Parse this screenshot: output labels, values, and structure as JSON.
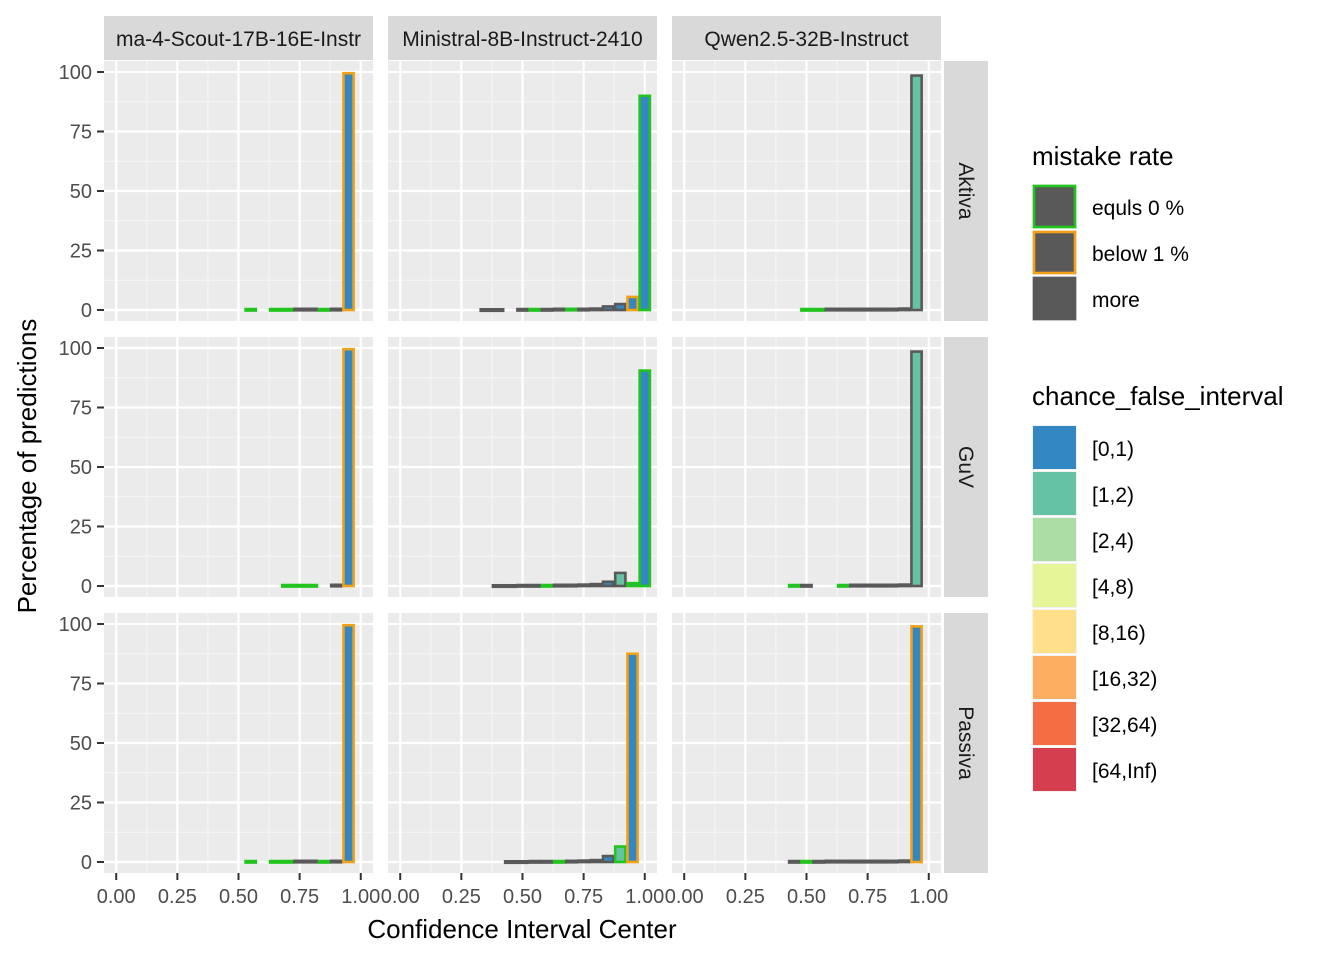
{
  "chart_data": {
    "type": "bar",
    "xlabel": "Confidence Interval Center",
    "ylabel": "Percentage of predictions",
    "xlim": [
      0,
      1
    ],
    "ylim": [
      0,
      100
    ],
    "x_ticks": [
      "0.00",
      "0.25",
      "0.50",
      "0.75",
      "1.00"
    ],
    "y_ticks": [
      "0",
      "25",
      "50",
      "75",
      "100"
    ],
    "bin_width": 0.05,
    "grid": true,
    "columns": [
      "ma-4-Scout-17B-16E-Instr",
      "Ministral-8B-Instruct-2410",
      "Qwen2.5-32B-Instruct"
    ],
    "rows": [
      "Aktiva",
      "GuV",
      "Passiva"
    ],
    "legend_placement": "right",
    "legend_mistake": {
      "title": "mistake rate",
      "items": [
        {
          "label": "equls 0 %",
          "color": "#22C41E"
        },
        {
          "label": "below 1 %",
          "color": "#F4A11A"
        },
        {
          "label": "more",
          "color": "#595959"
        }
      ]
    },
    "legend_fill": {
      "title": "chance_false_interval",
      "items": [
        {
          "label": "[0,1)",
          "color": "#3387C2"
        },
        {
          "label": "[1,2)",
          "color": "#66C2A5"
        },
        {
          "label": "[2,4)",
          "color": "#ABDDA4"
        },
        {
          "label": "[4,8)",
          "color": "#E6F598"
        },
        {
          "label": "[8,16)",
          "color": "#FEE08B"
        },
        {
          "label": "[16,32)",
          "color": "#FDAE61"
        },
        {
          "label": "[32,64)",
          "color": "#F46D43"
        },
        {
          "label": "[64,Inf)",
          "color": "#D53E4F"
        }
      ]
    },
    "panels": [
      {
        "column": 0,
        "row": 0,
        "bars": [
          {
            "x": 0.55,
            "y": 0.4,
            "outline": "#22C41E",
            "fill": "#3387C2"
          },
          {
            "x": 0.65,
            "y": 0.4,
            "outline": "#22C41E",
            "fill": "#3387C2"
          },
          {
            "x": 0.7,
            "y": 0.4,
            "outline": "#22C41E",
            "fill": "#3387C2"
          },
          {
            "x": 0.75,
            "y": 0.5,
            "outline": "#595959",
            "fill": "#3387C2"
          },
          {
            "x": 0.8,
            "y": 0.5,
            "outline": "#595959",
            "fill": "#3387C2"
          },
          {
            "x": 0.85,
            "y": 0.4,
            "outline": "#22C41E",
            "fill": "#3387C2"
          },
          {
            "x": 0.9,
            "y": 0.5,
            "outline": "#595959",
            "fill": "#3387C2"
          },
          {
            "x": 0.95,
            "y": 99.5,
            "outline": "#F4A11A",
            "fill": "#3387C2"
          }
        ]
      },
      {
        "column": 1,
        "row": 0,
        "bars": [
          {
            "x": 0.35,
            "y": 0.3,
            "outline": "#595959",
            "fill": "#3387C2"
          },
          {
            "x": 0.4,
            "y": 0.3,
            "outline": "#595959",
            "fill": "#3387C2"
          },
          {
            "x": 0.5,
            "y": 0.4,
            "outline": "#595959",
            "fill": "#3387C2"
          },
          {
            "x": 0.55,
            "y": 0.4,
            "outline": "#22C41E",
            "fill": "#3387C2"
          },
          {
            "x": 0.6,
            "y": 0.4,
            "outline": "#595959",
            "fill": "#3387C2"
          },
          {
            "x": 0.65,
            "y": 0.5,
            "outline": "#595959",
            "fill": "#3387C2"
          },
          {
            "x": 0.7,
            "y": 0.5,
            "outline": "#22C41E",
            "fill": "#3387C2"
          },
          {
            "x": 0.75,
            "y": 0.5,
            "outline": "#595959",
            "fill": "#3387C2"
          },
          {
            "x": 0.8,
            "y": 0.6,
            "outline": "#595959",
            "fill": "#3387C2"
          },
          {
            "x": 0.85,
            "y": 1.5,
            "outline": "#595959",
            "fill": "#3387C2"
          },
          {
            "x": 0.9,
            "y": 2.5,
            "outline": "#595959",
            "fill": "#3387C2"
          },
          {
            "x": 0.95,
            "y": 5.5,
            "outline": "#F4A11A",
            "fill": "#3387C2"
          },
          {
            "x": 1.0,
            "y": 90,
            "outline": "#22C41E",
            "fill": "#3387C2"
          }
        ]
      },
      {
        "column": 2,
        "row": 0,
        "bars": [
          {
            "x": 0.5,
            "y": 0.4,
            "outline": "#22C41E",
            "fill": "#66C2A5"
          },
          {
            "x": 0.55,
            "y": 0.4,
            "outline": "#22C41E",
            "fill": "#66C2A5"
          },
          {
            "x": 0.6,
            "y": 0.5,
            "outline": "#595959",
            "fill": "#66C2A5"
          },
          {
            "x": 0.65,
            "y": 0.5,
            "outline": "#595959",
            "fill": "#66C2A5"
          },
          {
            "x": 0.7,
            "y": 0.5,
            "outline": "#595959",
            "fill": "#66C2A5"
          },
          {
            "x": 0.75,
            "y": 0.5,
            "outline": "#595959",
            "fill": "#66C2A5"
          },
          {
            "x": 0.8,
            "y": 0.5,
            "outline": "#595959",
            "fill": "#66C2A5"
          },
          {
            "x": 0.85,
            "y": 0.5,
            "outline": "#595959",
            "fill": "#66C2A5"
          },
          {
            "x": 0.9,
            "y": 0.6,
            "outline": "#595959",
            "fill": "#66C2A5"
          },
          {
            "x": 0.95,
            "y": 98.5,
            "outline": "#595959",
            "fill": "#66C2A5"
          }
        ]
      },
      {
        "column": 0,
        "row": 1,
        "bars": [
          {
            "x": 0.7,
            "y": 0.4,
            "outline": "#22C41E",
            "fill": "#3387C2"
          },
          {
            "x": 0.75,
            "y": 0.4,
            "outline": "#22C41E",
            "fill": "#3387C2"
          },
          {
            "x": 0.8,
            "y": 0.4,
            "outline": "#22C41E",
            "fill": "#3387C2"
          },
          {
            "x": 0.9,
            "y": 0.5,
            "outline": "#595959",
            "fill": "#3387C2"
          },
          {
            "x": 0.95,
            "y": 99.5,
            "outline": "#F4A11A",
            "fill": "#3387C2"
          }
        ]
      },
      {
        "column": 1,
        "row": 1,
        "bars": [
          {
            "x": 0.4,
            "y": 0.3,
            "outline": "#595959",
            "fill": "#3387C2"
          },
          {
            "x": 0.45,
            "y": 0.3,
            "outline": "#595959",
            "fill": "#3387C2"
          },
          {
            "x": 0.5,
            "y": 0.4,
            "outline": "#595959",
            "fill": "#3387C2"
          },
          {
            "x": 0.55,
            "y": 0.4,
            "outline": "#595959",
            "fill": "#3387C2"
          },
          {
            "x": 0.6,
            "y": 0.4,
            "outline": "#22C41E",
            "fill": "#3387C2"
          },
          {
            "x": 0.65,
            "y": 0.5,
            "outline": "#595959",
            "fill": "#3387C2"
          },
          {
            "x": 0.7,
            "y": 0.5,
            "outline": "#595959",
            "fill": "#3387C2"
          },
          {
            "x": 0.75,
            "y": 0.6,
            "outline": "#595959",
            "fill": "#3387C2"
          },
          {
            "x": 0.8,
            "y": 0.8,
            "outline": "#595959",
            "fill": "#3387C2"
          },
          {
            "x": 0.85,
            "y": 1.8,
            "outline": "#595959",
            "fill": "#3387C2"
          },
          {
            "x": 0.9,
            "y": 5.5,
            "outline": "#595959",
            "fill": "#66C2A5"
          },
          {
            "x": 0.95,
            "y": 1.2,
            "outline": "#22C41E",
            "fill": "#3387C2"
          },
          {
            "x": 1.0,
            "y": 90.5,
            "outline": "#22C41E",
            "fill": "#3387C2"
          }
        ]
      },
      {
        "column": 2,
        "row": 1,
        "bars": [
          {
            "x": 0.45,
            "y": 0.4,
            "outline": "#22C41E",
            "fill": "#66C2A5"
          },
          {
            "x": 0.5,
            "y": 0.4,
            "outline": "#595959",
            "fill": "#66C2A5"
          },
          {
            "x": 0.65,
            "y": 0.4,
            "outline": "#22C41E",
            "fill": "#66C2A5"
          },
          {
            "x": 0.7,
            "y": 0.5,
            "outline": "#595959",
            "fill": "#66C2A5"
          },
          {
            "x": 0.75,
            "y": 0.5,
            "outline": "#595959",
            "fill": "#66C2A5"
          },
          {
            "x": 0.8,
            "y": 0.5,
            "outline": "#595959",
            "fill": "#66C2A5"
          },
          {
            "x": 0.85,
            "y": 0.5,
            "outline": "#595959",
            "fill": "#66C2A5"
          },
          {
            "x": 0.9,
            "y": 0.6,
            "outline": "#595959",
            "fill": "#66C2A5"
          },
          {
            "x": 0.95,
            "y": 98.5,
            "outline": "#595959",
            "fill": "#66C2A5"
          }
        ]
      },
      {
        "column": 0,
        "row": 2,
        "bars": [
          {
            "x": 0.55,
            "y": 0.4,
            "outline": "#22C41E",
            "fill": "#3387C2"
          },
          {
            "x": 0.65,
            "y": 0.4,
            "outline": "#22C41E",
            "fill": "#3387C2"
          },
          {
            "x": 0.7,
            "y": 0.4,
            "outline": "#22C41E",
            "fill": "#3387C2"
          },
          {
            "x": 0.75,
            "y": 0.5,
            "outline": "#595959",
            "fill": "#3387C2"
          },
          {
            "x": 0.8,
            "y": 0.5,
            "outline": "#595959",
            "fill": "#3387C2"
          },
          {
            "x": 0.85,
            "y": 0.4,
            "outline": "#22C41E",
            "fill": "#3387C2"
          },
          {
            "x": 0.9,
            "y": 0.5,
            "outline": "#595959",
            "fill": "#3387C2"
          },
          {
            "x": 0.95,
            "y": 99.5,
            "outline": "#F4A11A",
            "fill": "#3387C2"
          }
        ]
      },
      {
        "column": 1,
        "row": 2,
        "bars": [
          {
            "x": 0.45,
            "y": 0.3,
            "outline": "#595959",
            "fill": "#3387C2"
          },
          {
            "x": 0.5,
            "y": 0.3,
            "outline": "#595959",
            "fill": "#3387C2"
          },
          {
            "x": 0.55,
            "y": 0.4,
            "outline": "#595959",
            "fill": "#3387C2"
          },
          {
            "x": 0.6,
            "y": 0.4,
            "outline": "#595959",
            "fill": "#3387C2"
          },
          {
            "x": 0.65,
            "y": 0.4,
            "outline": "#22C41E",
            "fill": "#3387C2"
          },
          {
            "x": 0.7,
            "y": 0.5,
            "outline": "#595959",
            "fill": "#3387C2"
          },
          {
            "x": 0.75,
            "y": 0.6,
            "outline": "#595959",
            "fill": "#3387C2"
          },
          {
            "x": 0.8,
            "y": 0.8,
            "outline": "#595959",
            "fill": "#3387C2"
          },
          {
            "x": 0.85,
            "y": 2.5,
            "outline": "#595959",
            "fill": "#3387C2"
          },
          {
            "x": 0.9,
            "y": 6.5,
            "outline": "#22C41E",
            "fill": "#66C2A5"
          },
          {
            "x": 0.95,
            "y": 87.5,
            "outline": "#F4A11A",
            "fill": "#3387C2"
          }
        ]
      },
      {
        "column": 2,
        "row": 2,
        "bars": [
          {
            "x": 0.45,
            "y": 0.4,
            "outline": "#595959",
            "fill": "#3387C2"
          },
          {
            "x": 0.5,
            "y": 0.4,
            "outline": "#22C41E",
            "fill": "#3387C2"
          },
          {
            "x": 0.55,
            "y": 0.4,
            "outline": "#595959",
            "fill": "#3387C2"
          },
          {
            "x": 0.6,
            "y": 0.5,
            "outline": "#595959",
            "fill": "#3387C2"
          },
          {
            "x": 0.65,
            "y": 0.5,
            "outline": "#595959",
            "fill": "#3387C2"
          },
          {
            "x": 0.7,
            "y": 0.5,
            "outline": "#595959",
            "fill": "#3387C2"
          },
          {
            "x": 0.75,
            "y": 0.5,
            "outline": "#595959",
            "fill": "#3387C2"
          },
          {
            "x": 0.8,
            "y": 0.5,
            "outline": "#595959",
            "fill": "#3387C2"
          },
          {
            "x": 0.85,
            "y": 0.5,
            "outline": "#595959",
            "fill": "#3387C2"
          },
          {
            "x": 0.9,
            "y": 0.6,
            "outline": "#595959",
            "fill": "#3387C2"
          },
          {
            "x": 0.95,
            "y": 99,
            "outline": "#F4A11A",
            "fill": "#3387C2"
          }
        ]
      }
    ]
  }
}
